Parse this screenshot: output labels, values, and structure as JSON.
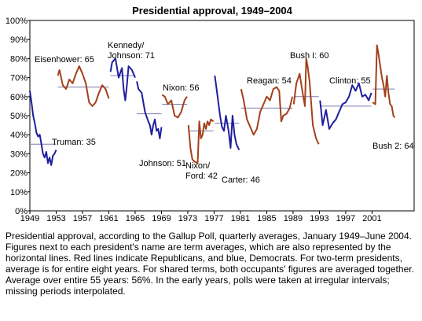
{
  "chart_data": {
    "type": "line",
    "title": "Presidential approval, 1949–2004",
    "caption": "Presidential approval, according to the Gallup Poll, quarterly averages, January 1949–June 2004. Figures next to each president's name are term averages, which are also represented by the horizontal lines. Red lines indicate Republicans, and blue, Democrats. For two-term presidents, average is for entire eight years. For shared terms, both occupants' figures are averaged together. Average over entire 55 years: 56%. In the early years, polls were taken at irregular intervals; missing periods interpolated.",
    "xlim": [
      1949,
      2007.4
    ],
    "xticks": [
      1949,
      1953,
      1957,
      1961,
      1965,
      1969,
      1973,
      1977,
      1981,
      1985,
      1989,
      1993,
      1997,
      2001
    ],
    "ylim": [
      0,
      100
    ],
    "yticks": [
      {
        "value": 0,
        "label": "0%"
      },
      {
        "value": 10,
        "label": "10%"
      },
      {
        "value": 20,
        "label": "20%"
      },
      {
        "value": 30,
        "label": "30%"
      },
      {
        "value": 40,
        "label": "40%"
      },
      {
        "value": 50,
        "label": "50%"
      },
      {
        "value": 60,
        "label": "60%"
      },
      {
        "value": 70,
        "label": "70%"
      },
      {
        "value": 80,
        "label": "80%"
      },
      {
        "value": 90,
        "label": "90%"
      },
      {
        "value": 100,
        "label": "100%"
      }
    ],
    "average_color": "#7b7bb0",
    "series": [
      {
        "name": "Truman",
        "label": [
          "Truman: 35"
        ],
        "average": 35,
        "color": "#1f1f9e",
        "x": [
          1949,
          1949.25,
          1949.5,
          1949.75,
          1950,
          1950.25,
          1950.5,
          1950.75,
          1951,
          1951.25,
          1951.5,
          1951.75,
          1952,
          1952.25,
          1952.5,
          1952.75,
          1953
        ],
        "values": [
          63,
          57,
          50,
          46,
          41,
          39,
          40,
          35,
          30,
          28,
          31,
          25,
          28,
          24,
          29,
          30,
          32
        ]
      },
      {
        "name": "Eisenhower",
        "label": [
          "Eisenhower: 65"
        ],
        "average": 65,
        "color": "#a3401c",
        "x": [
          1953.25,
          1953.5,
          1954,
          1954.5,
          1955,
          1955.5,
          1956,
          1956.5,
          1957,
          1957.5,
          1958,
          1958.5,
          1959,
          1959.5,
          1960,
          1960.5,
          1961
        ],
        "values": [
          71,
          74,
          66,
          64,
          69,
          67,
          72,
          76,
          72,
          67,
          57,
          55,
          57,
          62,
          66,
          64,
          59
        ]
      },
      {
        "name": "Kennedy/Johnson",
        "label": [
          "Kennedy/",
          "Johnson: 71"
        ],
        "average": 71,
        "color": "#1f1f9e",
        "x": [
          1961.25,
          1961.5,
          1962,
          1962.5,
          1963,
          1963.25,
          1963.5,
          1963.75,
          1964,
          1964.5,
          1965
        ],
        "values": [
          73,
          78,
          80,
          70,
          75,
          64,
          58,
          66,
          76,
          74,
          70
        ]
      },
      {
        "name": "Johnson",
        "label": [
          "Johnson: 51"
        ],
        "average": 51,
        "color": "#1f1f9e",
        "x": [
          1965.25,
          1965.5,
          1966,
          1966.5,
          1967,
          1967.25,
          1967.5,
          1967.75,
          1968,
          1968.25,
          1968.5,
          1968.75,
          1969
        ],
        "values": [
          68,
          64,
          62,
          52,
          47,
          45,
          40,
          45,
          48,
          42,
          43,
          38,
          44
        ]
      },
      {
        "name": "Nixon",
        "label": [
          "Nixon:  56"
        ],
        "average": 56,
        "color": "#a3401c",
        "x": [
          1969.1,
          1969.5,
          1970,
          1970.5,
          1971,
          1971.5,
          1972,
          1972.5,
          1972.9
        ],
        "values": [
          61,
          60,
          56,
          58,
          50,
          49,
          52,
          58,
          60
        ]
      },
      {
        "name": "Nixon/Ford",
        "label": [
          "Nixon/",
          "Ford: 42"
        ],
        "average": 42,
        "color": "#a3401c",
        "x": [
          1973.1,
          1973.4,
          1973.7,
          1974,
          1974.5,
          1974.75,
          1975,
          1975.25,
          1975.5,
          1975.75,
          1976,
          1976.25,
          1976.5,
          1976.9
        ],
        "values": [
          45,
          33,
          27,
          26,
          25,
          47,
          38,
          40,
          46,
          43,
          47,
          45,
          48,
          47
        ]
      },
      {
        "name": "Carter",
        "label": [
          "Carter: 46"
        ],
        "average": 46,
        "color": "#1f1f9e",
        "x": [
          1977.1,
          1977.3,
          1977.6,
          1977.9,
          1978.2,
          1978.5,
          1978.8,
          1979.2,
          1979.5,
          1979.8,
          1980.1,
          1980.4,
          1980.8
        ],
        "values": [
          71,
          66,
          58,
          50,
          44,
          42,
          50,
          42,
          33,
          50,
          40,
          35,
          32
        ]
      },
      {
        "name": "Reagan",
        "label": [
          "Reagan: 54"
        ],
        "average": 54,
        "color": "#a3401c",
        "x": [
          1981.1,
          1981.5,
          1982,
          1982.5,
          1983,
          1983.5,
          1984,
          1984.5,
          1985,
          1985.5,
          1986,
          1986.5,
          1986.9,
          1987.2,
          1987.5,
          1988,
          1988.5,
          1988.9
        ],
        "values": [
          64,
          58,
          48,
          44,
          40,
          43,
          52,
          56,
          60,
          58,
          64,
          65,
          63,
          47,
          50,
          51,
          54,
          60
        ]
      },
      {
        "name": "Bush I",
        "label": [
          "Bush I: 60"
        ],
        "average": 60,
        "color": "#a3401c",
        "x": [
          1989.1,
          1989.5,
          1990,
          1990.5,
          1990.8,
          1991,
          1991.2,
          1991.5,
          1992,
          1992.5,
          1992.9
        ],
        "values": [
          56,
          67,
          72,
          61,
          55,
          80,
          76,
          68,
          45,
          38,
          35
        ]
      },
      {
        "name": "Clinton",
        "label": [
          "Clinton: 55"
        ],
        "average": 55,
        "color": "#1f1f9e",
        "x": [
          1993.1,
          1993.5,
          1994,
          1994.5,
          1995,
          1995.5,
          1996,
          1996.5,
          1997,
          1997.5,
          1998,
          1998.5,
          1999,
          1999.5,
          2000,
          2000.5,
          2000.9
        ],
        "values": [
          58,
          45,
          53,
          43,
          46,
          48,
          52,
          56,
          57,
          60,
          66,
          63,
          67,
          60,
          61,
          58,
          62
        ]
      },
      {
        "name": "Bush 2",
        "label": [
          "Bush 2: 64"
        ],
        "average": 64,
        "color": "#a3401c",
        "x": [
          2001.1,
          2001.5,
          2001.75,
          2002,
          2002.25,
          2002.5,
          2002.75,
          2003,
          2003.25,
          2003.5,
          2003.75,
          2004,
          2004.25,
          2004.45
        ],
        "values": [
          57,
          56,
          87,
          82,
          76,
          70,
          66,
          60,
          71,
          62,
          56,
          55,
          50,
          49
        ]
      }
    ]
  }
}
